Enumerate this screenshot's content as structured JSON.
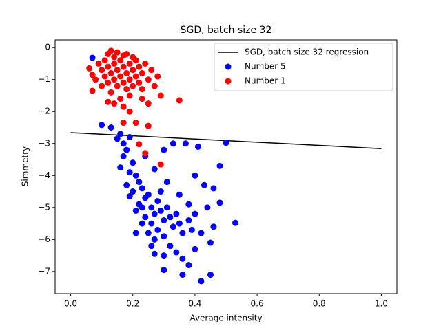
{
  "chart_data": {
    "type": "scatter",
    "title": "SGD, batch size 32",
    "xlabel": "Average intensity",
    "ylabel": "Simmetry",
    "xlim": [
      -0.05,
      1.05
    ],
    "ylim": [
      -7.69,
      0.24
    ],
    "xticks": [
      {
        "value": 0,
        "label": "0.0"
      },
      {
        "value": 0.2,
        "label": "0.2"
      },
      {
        "value": 0.4,
        "label": "0.4"
      },
      {
        "value": 0.6,
        "label": "0.6"
      },
      {
        "value": 0.8,
        "label": "0.8"
      },
      {
        "value": 1,
        "label": "1.0"
      }
    ],
    "yticks": [
      0,
      {
        "value": -1,
        "label": "−1"
      },
      {
        "value": -2,
        "label": "−2"
      },
      {
        "value": -3,
        "label": "−3"
      },
      {
        "value": -4,
        "label": "−4"
      },
      {
        "value": -5,
        "label": "−5"
      },
      {
        "value": -6,
        "label": "−6"
      },
      {
        "value": -7,
        "label": "−7"
      }
    ],
    "legend": "upper right",
    "series": [
      {
        "name": "SGD, batch size 32 regression",
        "type": "line",
        "color": "#000000",
        "x": [
          0,
          1
        ],
        "values": [
          -2.66,
          -3.16
        ]
      },
      {
        "name": "Number 5",
        "type": "scatter",
        "color": "#0000ff",
        "x": [
          0.07,
          0.1,
          0.13,
          0.15,
          0.16,
          0.17,
          0.18,
          0.19,
          0.17,
          0.2,
          0.16,
          0.19,
          0.21,
          0.18,
          0.22,
          0.2,
          0.23,
          0.19,
          0.24,
          0.22,
          0.25,
          0.26,
          0.21,
          0.27,
          0.24,
          0.28,
          0.29,
          0.3,
          0.26,
          0.31,
          0.32,
          0.28,
          0.33,
          0.3,
          0.34,
          0.35,
          0.27,
          0.32,
          0.36,
          0.38,
          0.25,
          0.23,
          0.29,
          0.31,
          0.27,
          0.24,
          0.3,
          0.33,
          0.37,
          0.41,
          0.5,
          0.48,
          0.4,
          0.43,
          0.46,
          0.53,
          0.48,
          0.44,
          0.46,
          0.42,
          0.45,
          0.4,
          0.34,
          0.36,
          0.3,
          0.27,
          0.38,
          0.3,
          0.36,
          0.42,
          0.45,
          0.26,
          0.23,
          0.21,
          0.35,
          0.38,
          0.39,
          0.4
        ],
        "values": [
          -0.32,
          -2.42,
          -2.5,
          -2.85,
          -2.7,
          -3.0,
          -3.2,
          -2.8,
          -3.4,
          -3.6,
          -3.75,
          -3.9,
          -4.0,
          -4.3,
          -4.2,
          -4.5,
          -4.4,
          -4.65,
          -4.7,
          -4.9,
          -4.6,
          -5.0,
          -5.1,
          -5.2,
          -5.3,
          -4.8,
          -5.1,
          -5.4,
          -5.5,
          -5.0,
          -5.3,
          -5.7,
          -5.6,
          -5.9,
          -5.2,
          -5.5,
          -6.0,
          -6.2,
          -5.8,
          -5.4,
          -5.8,
          -5.0,
          -4.5,
          -4.2,
          -3.8,
          -3.4,
          -3.2,
          -3.0,
          -3.0,
          -3.1,
          -2.98,
          -3.7,
          -4.0,
          -4.3,
          -4.4,
          -5.48,
          -4.85,
          -5.0,
          -5.6,
          -5.8,
          -6.1,
          -6.3,
          -6.4,
          -6.6,
          -6.5,
          -6.45,
          -6.8,
          -6.95,
          -7.1,
          -7.3,
          -7.1,
          -6.2,
          -5.5,
          -5.8,
          -4.6,
          -4.9,
          -5.7,
          -5.2
        ]
      },
      {
        "name": "Number 1",
        "type": "scatter",
        "color": "#ff0000",
        "x": [
          0.06,
          0.07,
          0.07,
          0.08,
          0.09,
          0.1,
          0.1,
          0.11,
          0.11,
          0.12,
          0.12,
          0.12,
          0.13,
          0.13,
          0.13,
          0.14,
          0.14,
          0.14,
          0.15,
          0.15,
          0.15,
          0.16,
          0.16,
          0.16,
          0.17,
          0.17,
          0.17,
          0.18,
          0.18,
          0.18,
          0.19,
          0.19,
          0.19,
          0.2,
          0.2,
          0.2,
          0.21,
          0.21,
          0.22,
          0.22,
          0.23,
          0.23,
          0.24,
          0.25,
          0.26,
          0.27,
          0.28,
          0.12,
          0.14,
          0.17,
          0.19,
          0.23,
          0.25,
          0.29,
          0.35,
          0.21,
          0.25,
          0.17,
          0.22,
          0.24,
          0.29
        ],
        "values": [
          -0.65,
          -0.85,
          -1.35,
          -1.0,
          -0.5,
          -0.7,
          -1.2,
          -0.4,
          -0.9,
          -0.2,
          -0.6,
          -1.1,
          -0.1,
          -0.8,
          -1.4,
          -0.3,
          -0.5,
          -1.0,
          -0.7,
          -1.2,
          -0.15,
          -0.4,
          -0.9,
          -1.6,
          -0.25,
          -0.6,
          -1.1,
          -0.8,
          -1.3,
          -0.2,
          -0.5,
          -1.0,
          -1.5,
          -0.3,
          -0.7,
          -1.2,
          -0.9,
          -0.4,
          -1.1,
          -0.6,
          -0.8,
          -1.3,
          -0.5,
          -1.0,
          -0.7,
          -1.2,
          -0.9,
          -1.7,
          -1.75,
          -1.85,
          -2.0,
          -1.6,
          -1.75,
          -1.5,
          -1.65,
          -2.35,
          -2.45,
          -2.35,
          -3.02,
          -3.3,
          -3.65
        ]
      }
    ]
  }
}
